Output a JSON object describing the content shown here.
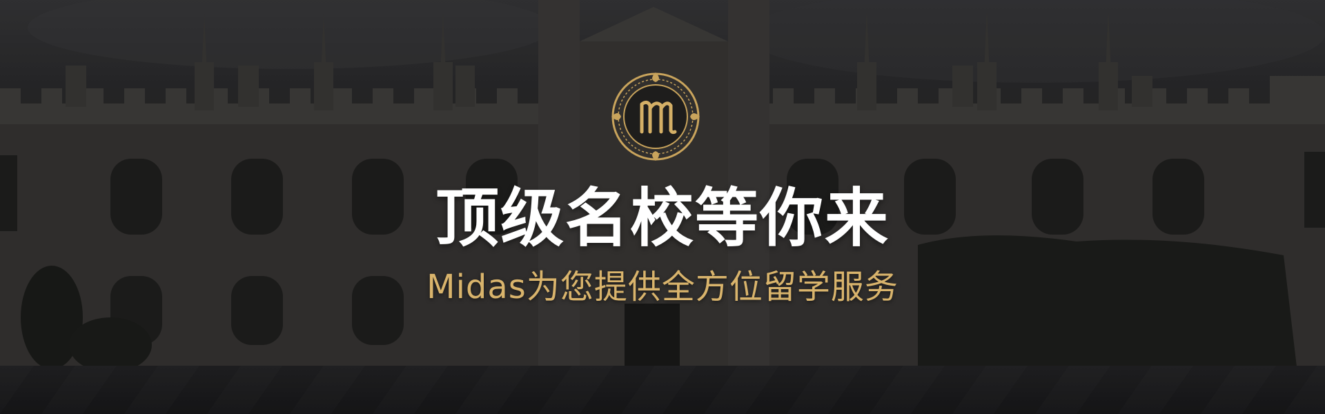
{
  "banner": {
    "logo_mark": "m",
    "headline": "顶级名校等你来",
    "subline": "Midas为您提供全方位留学服务"
  },
  "icons": {
    "logo": "ornate-gold-monogram-seal"
  },
  "colors": {
    "headline": "#ffffff",
    "subline": "#d9b46c",
    "logo_gold": "#c9a45c",
    "background": "#2a2a2c"
  }
}
